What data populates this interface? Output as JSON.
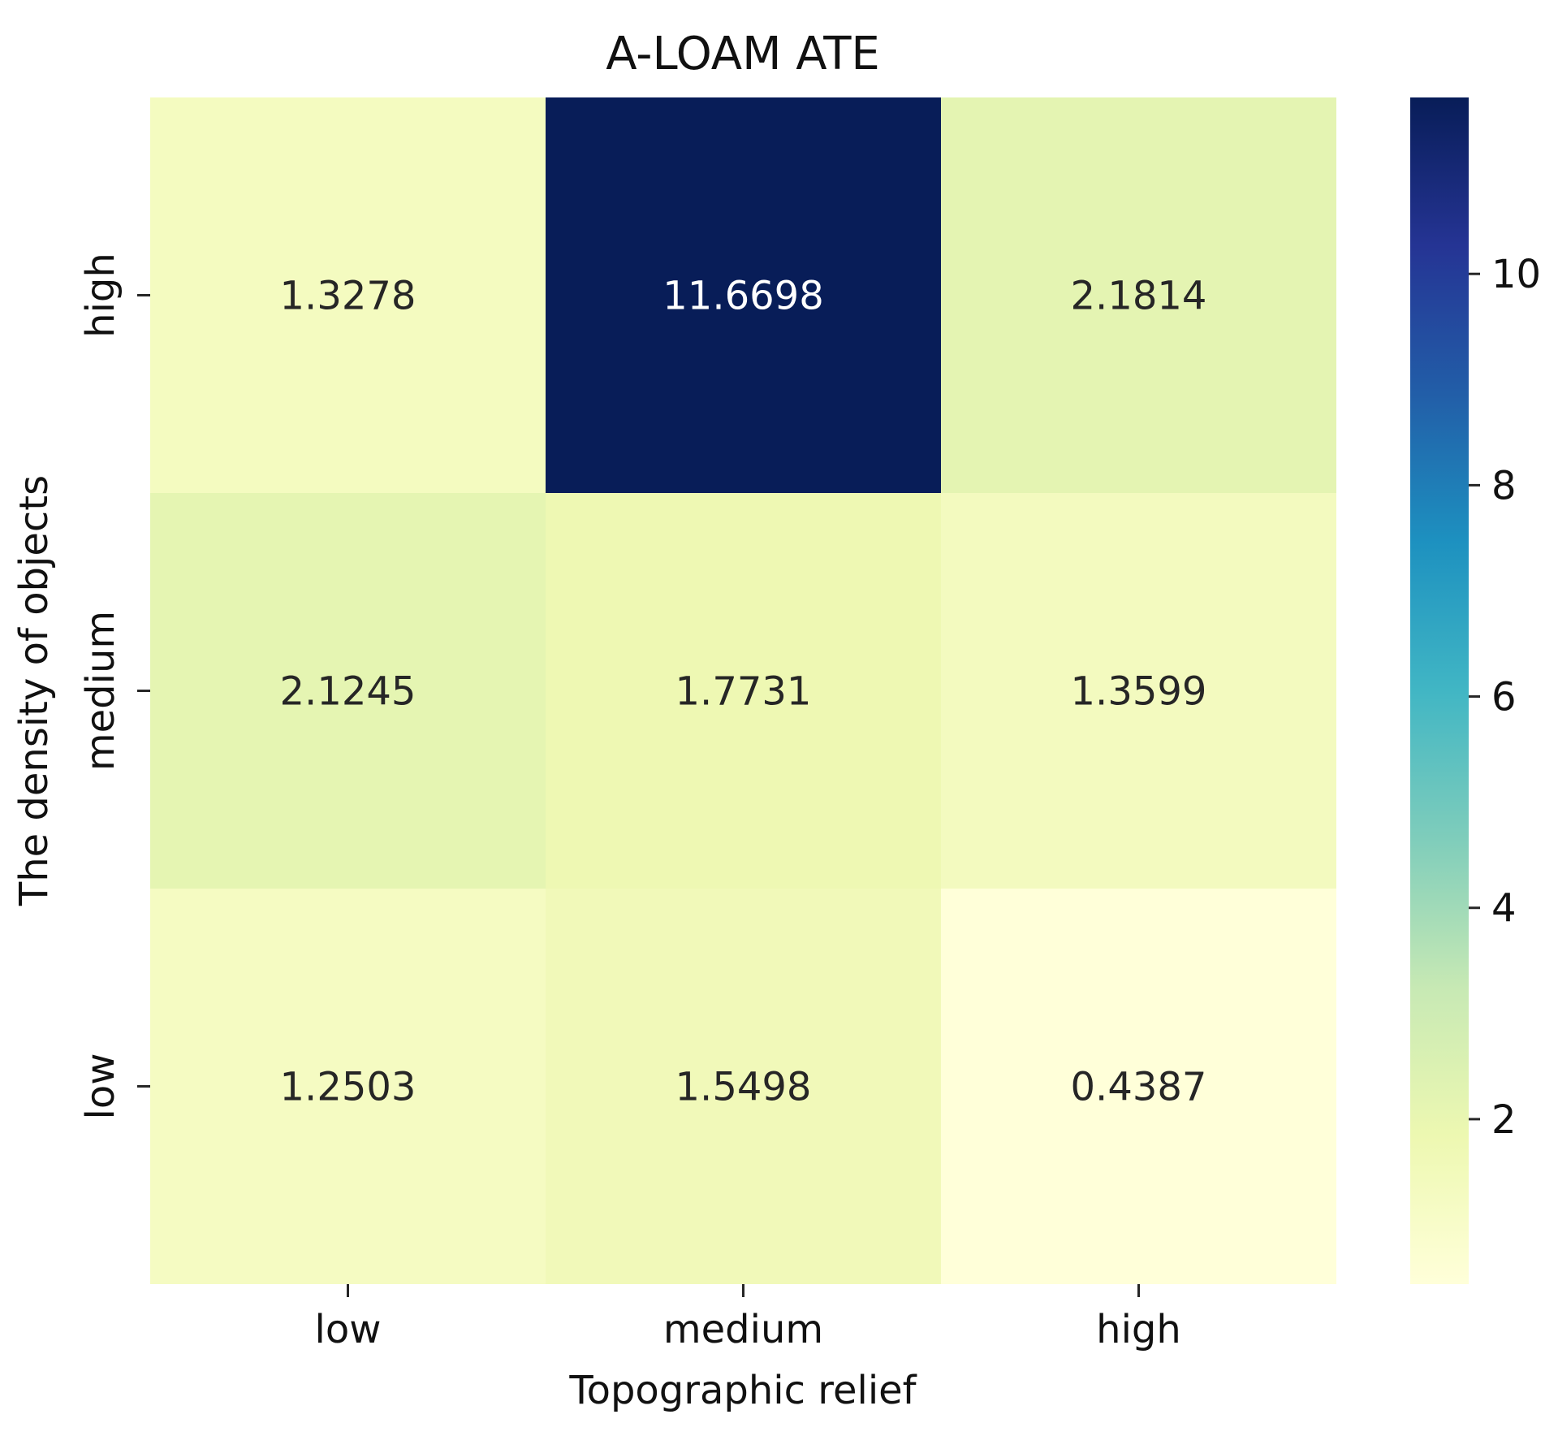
{
  "chart_data": {
    "type": "heatmap",
    "title": "A-LOAM ATE",
    "xlabel": "Topographic relief",
    "ylabel": "The density of objects",
    "x_categories": [
      "low",
      "medium",
      "high"
    ],
    "y_categories": [
      "high",
      "medium",
      "low"
    ],
    "values": [
      [
        1.3278,
        11.6698,
        2.1814
      ],
      [
        2.1245,
        1.7731,
        1.3599
      ],
      [
        1.2503,
        1.5498,
        0.4387
      ]
    ],
    "annotations": [
      [
        "1.3278",
        "11.6698",
        "2.1814"
      ],
      [
        "2.1245",
        "1.7731",
        "1.3599"
      ],
      [
        "1.2503",
        "1.5498",
        "0.4387"
      ]
    ],
    "colormap": "YlGnBu",
    "colorbar": {
      "vmin": 0.4387,
      "vmax": 11.6698,
      "ticks": [
        2,
        4,
        6,
        8,
        10
      ],
      "tick_labels": [
        "2",
        "4",
        "6",
        "8",
        "10"
      ]
    },
    "grid": false
  }
}
